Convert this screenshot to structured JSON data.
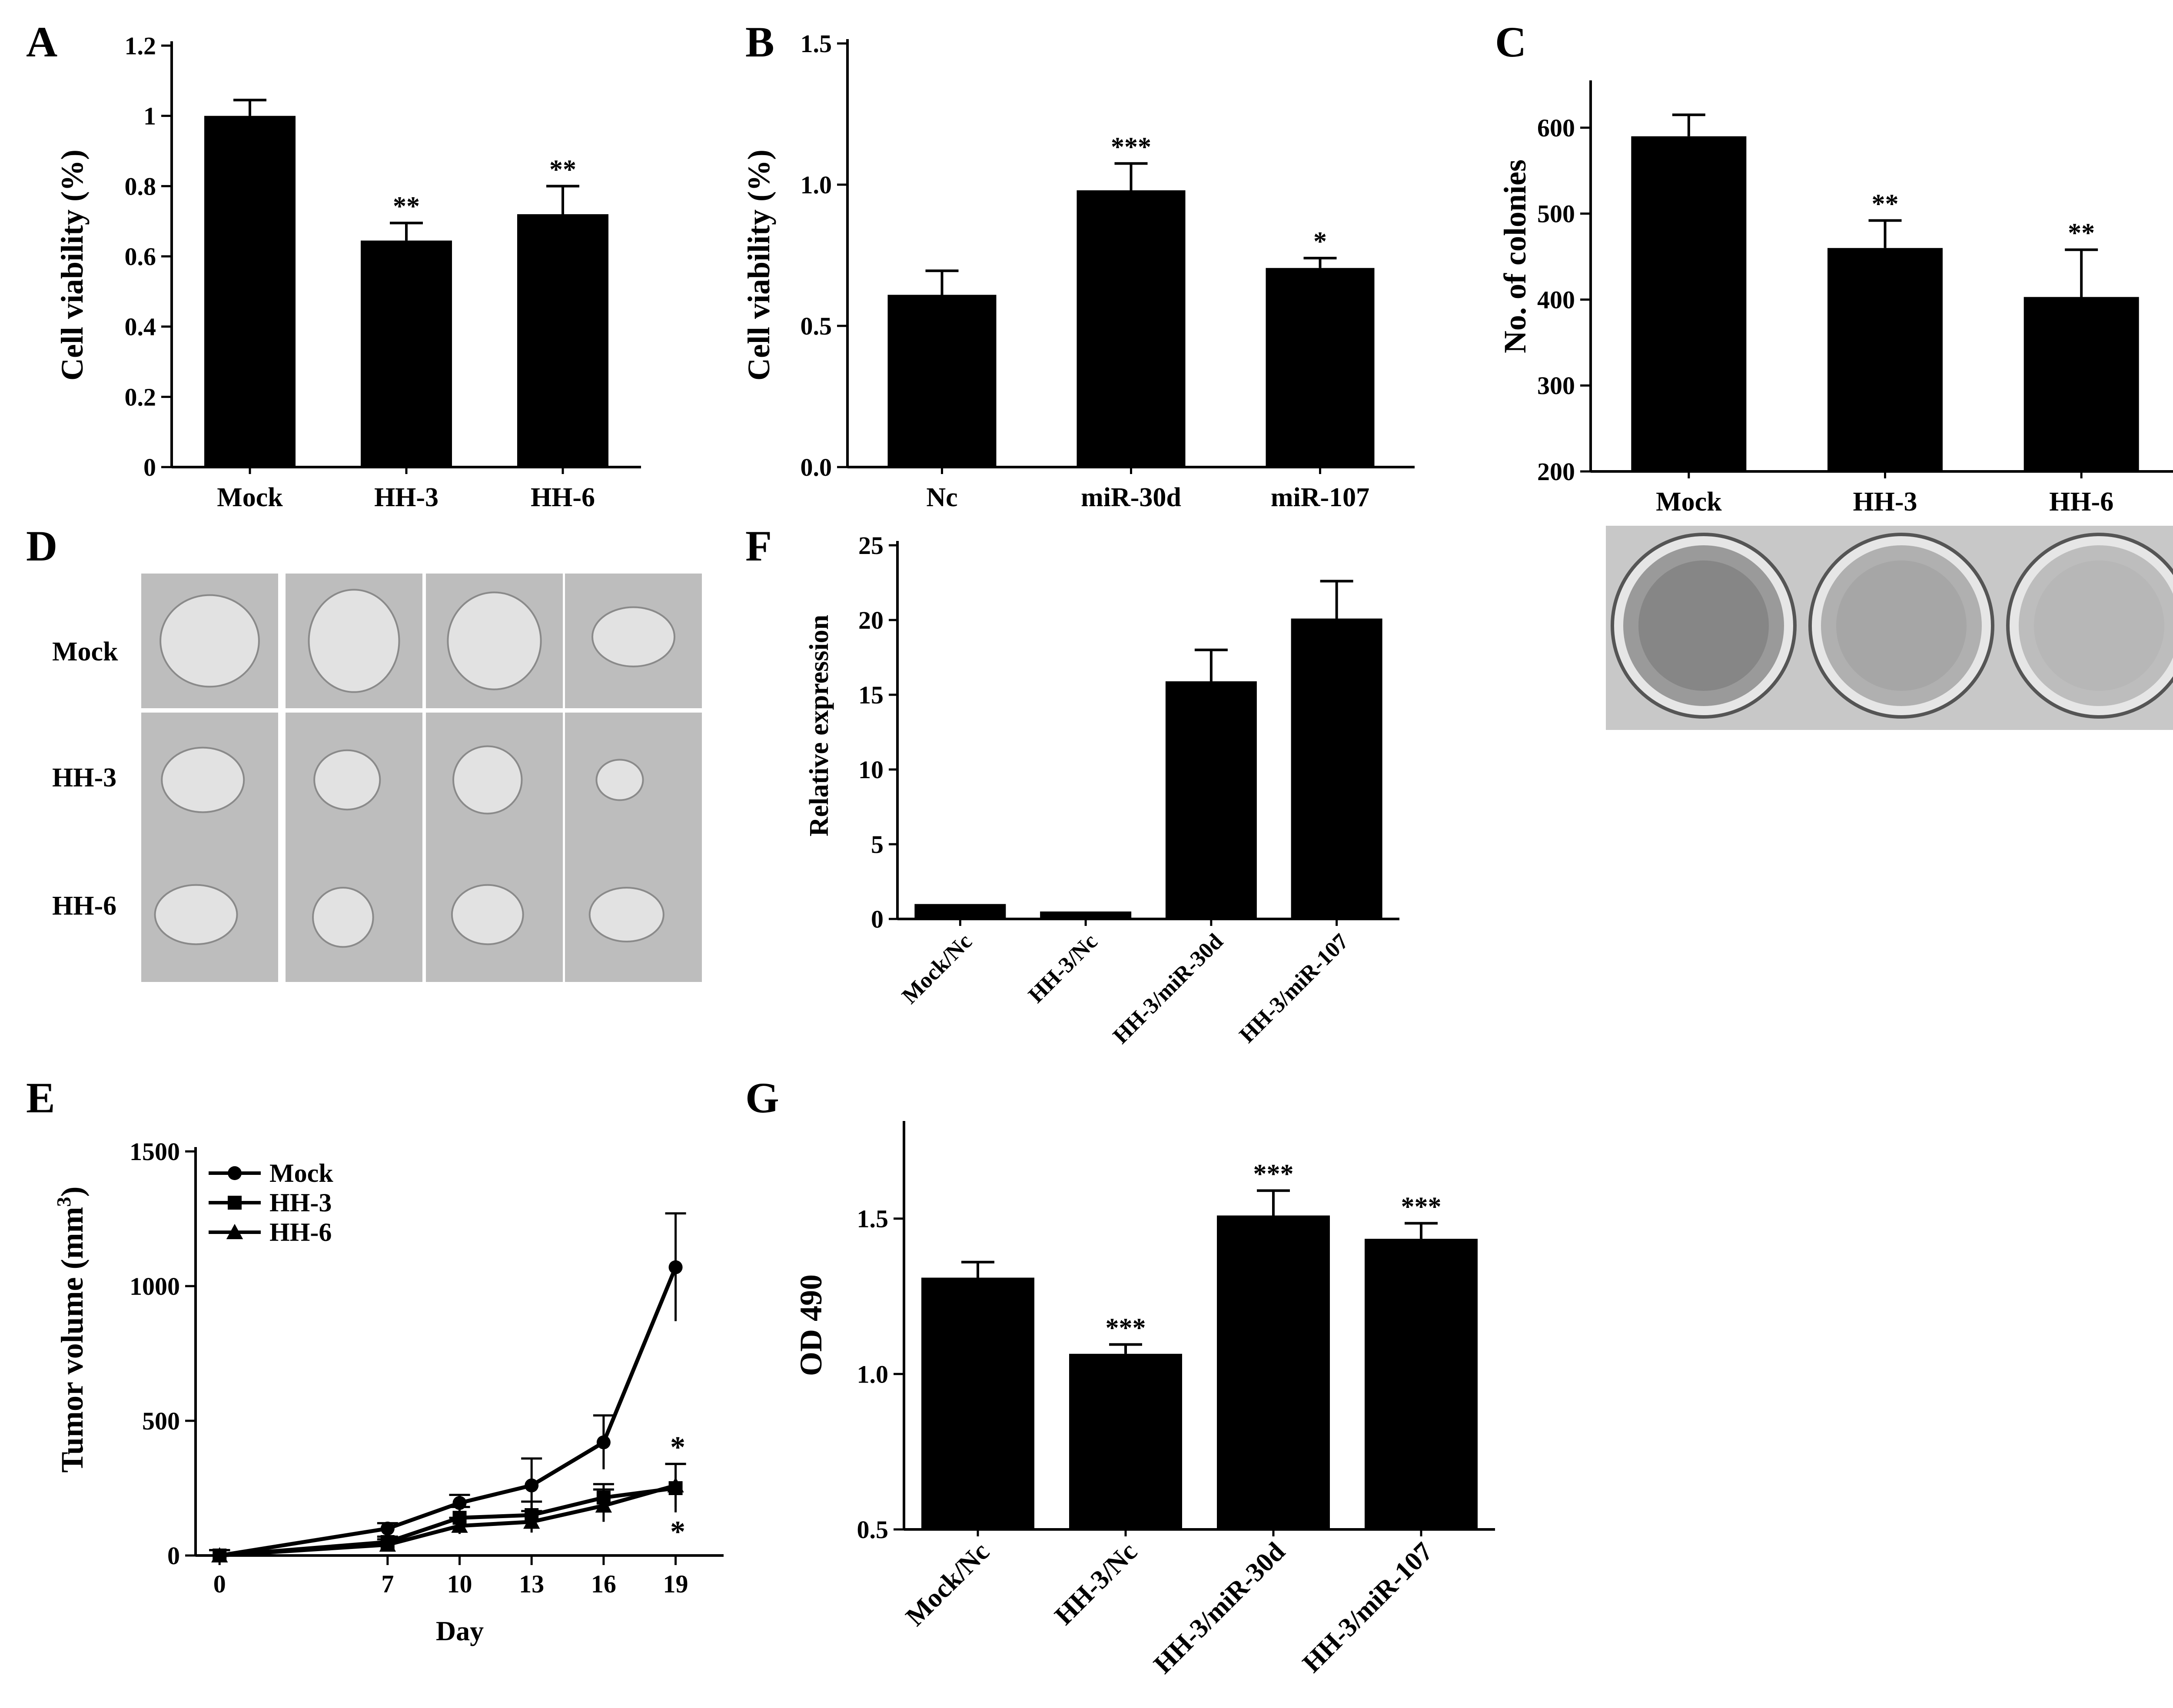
{
  "colors": {
    "bar": "#000000",
    "axis": "#000000",
    "background": "#ffffff",
    "photo_bg": "#bdbdbd",
    "tumor": "#e2e2e2",
    "dish": "#f0f0f0"
  },
  "panels": {
    "A": {
      "letter": "A"
    },
    "B": {
      "letter": "B"
    },
    "C": {
      "letter": "C"
    },
    "D": {
      "letter": "D",
      "row_labels": [
        "Mock",
        "HH-3",
        "HH-6"
      ]
    },
    "E": {
      "letter": "E"
    },
    "F": {
      "letter": "F"
    },
    "G": {
      "letter": "G"
    }
  },
  "chart_data": [
    {
      "panel": "A",
      "type": "bar",
      "categories": [
        "Mock",
        "HH-3",
        "HH-6"
      ],
      "values": [
        1.0,
        0.645,
        0.72
      ],
      "errors": [
        0.045,
        0.05,
        0.08
      ],
      "significance": [
        "",
        "**",
        "**"
      ],
      "ylabel": "Cell viability (%)",
      "xlabel": "",
      "ylim": [
        0,
        1.2
      ],
      "yticks": [
        0,
        0.2,
        0.4,
        0.6,
        0.8,
        1.0,
        1.2
      ],
      "ytick_labels": [
        "0",
        "0.2",
        "0.4",
        "0.6",
        "0.8",
        "1",
        "1.2"
      ]
    },
    {
      "panel": "B",
      "type": "bar",
      "categories": [
        "Nc",
        "miR-30d",
        "miR-107"
      ],
      "values": [
        0.61,
        0.98,
        0.705
      ],
      "errors": [
        0.085,
        0.095,
        0.035
      ],
      "significance": [
        "",
        "***",
        "*"
      ],
      "ylabel": "Cell viability (%)",
      "xlabel": "",
      "ylim": [
        0,
        1.5
      ],
      "yticks": [
        0,
        0.5,
        1.0,
        1.5
      ],
      "ytick_labels": [
        "0.0",
        "0.5",
        "1.0",
        "1.5"
      ]
    },
    {
      "panel": "C",
      "type": "bar",
      "categories": [
        "Mock",
        "HH-3",
        "HH-6"
      ],
      "values": [
        590,
        460,
        403
      ],
      "errors": [
        25,
        32,
        55
      ],
      "significance": [
        "",
        "**",
        "**"
      ],
      "ylabel": "No. of colonies",
      "xlabel": "",
      "ylim": [
        200,
        650
      ],
      "yticks": [
        200,
        300,
        400,
        500,
        600
      ],
      "ytick_labels": [
        "200",
        "300",
        "400",
        "500",
        "600"
      ]
    },
    {
      "panel": "F",
      "type": "bar",
      "categories": [
        "Mock/Nc",
        "HH-3/Nc",
        "HH-3/miR-30d",
        "HH-3/miR-107"
      ],
      "values": [
        1.0,
        0.5,
        15.9,
        20.1
      ],
      "errors": [
        0,
        0,
        2.1,
        2.5
      ],
      "significance": [
        "",
        "",
        "",
        ""
      ],
      "ylabel": "Relative expression",
      "xlabel": "",
      "ylim": [
        0,
        25
      ],
      "yticks": [
        0,
        5,
        10,
        15,
        20,
        25
      ],
      "ytick_labels": [
        "0",
        "5",
        "10",
        "15",
        "20",
        "25"
      ]
    },
    {
      "panel": "G",
      "type": "bar",
      "categories": [
        "Mock/Nc",
        "HH-3/Nc",
        "HH-3/miR-30d",
        "HH-3/miR-107"
      ],
      "values": [
        1.31,
        1.065,
        1.51,
        1.435
      ],
      "errors": [
        0.05,
        0.03,
        0.08,
        0.05
      ],
      "significance": [
        "",
        "***",
        "***",
        "***"
      ],
      "ylabel": "OD  490",
      "xlabel": "",
      "ylim": [
        0.5,
        1.8
      ],
      "yticks": [
        0.5,
        1.0,
        1.5
      ],
      "ytick_labels": [
        "0.5",
        "1.0",
        "1.5"
      ]
    },
    {
      "panel": "E",
      "type": "line",
      "x": [
        0,
        7,
        10,
        13,
        16,
        19
      ],
      "xticks": [
        0,
        7,
        10,
        13,
        16,
        19
      ],
      "xtick_labels": [
        "0",
        "7",
        "10",
        "13",
        "16",
        "19"
      ],
      "series": [
        {
          "name": "Mock",
          "marker": "circle",
          "values": [
            0,
            100,
            195,
            260,
            420,
            1070
          ],
          "errors": [
            20,
            20,
            30,
            100,
            100,
            200
          ]
        },
        {
          "name": "HH-3",
          "marker": "square",
          "values": [
            0,
            50,
            140,
            150,
            215,
            250
          ],
          "errors": [
            20,
            20,
            40,
            50,
            50,
            90
          ]
        },
        {
          "name": "HH-6",
          "marker": "triangle",
          "values": [
            0,
            40,
            110,
            125,
            185,
            260
          ],
          "errors": [
            20,
            20,
            30,
            40,
            60,
            80
          ]
        }
      ],
      "significance": [
        "*",
        "*"
      ],
      "xlabel": "Day",
      "ylabel_main": "Tumor volume (mm",
      "ylabel_sup": "3",
      "ylabel_end": ")",
      "ylim": [
        0,
        1500
      ],
      "yticks": [
        0,
        500,
        1000,
        1500
      ],
      "ytick_labels": [
        "0",
        "500",
        "1000",
        "1500"
      ]
    }
  ]
}
